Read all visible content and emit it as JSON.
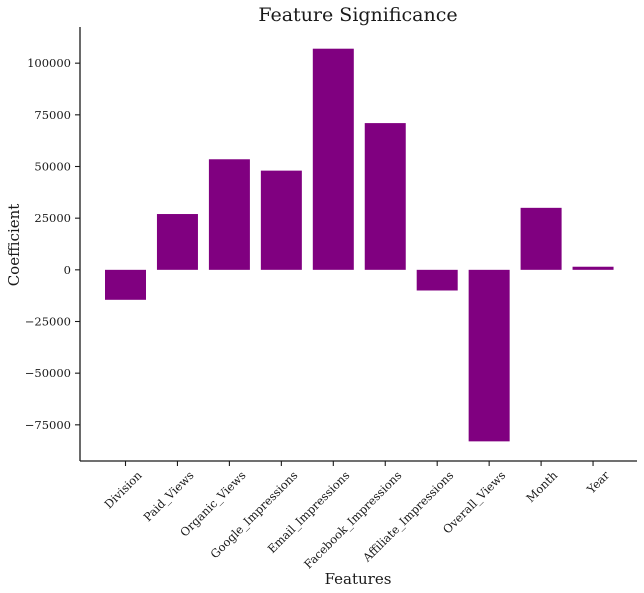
{
  "chart_data": {
    "type": "bar",
    "title": "Feature Significance",
    "xlabel": "Features",
    "ylabel": "Coefficient",
    "categories": [
      "Division",
      "Paid_Views",
      "Organic_Views",
      "Google_Impressions",
      "Email_Impressions",
      "Facebook_Impressions",
      "Affiliate_Impressions",
      "Overall_Views",
      "Month",
      "Year"
    ],
    "values": [
      -14500,
      27000,
      53500,
      48000,
      107000,
      71000,
      -10000,
      -83000,
      30000,
      1500
    ],
    "ylim": [
      -92500,
      117500
    ],
    "yticks": [
      -75000,
      -50000,
      -25000,
      0,
      25000,
      50000,
      75000,
      100000
    ],
    "ytick_labels": [
      "−75000",
      "−50000",
      "−25000",
      "0",
      "25000",
      "50000",
      "75000",
      "100000"
    ],
    "bar_color": "#800080",
    "grid": false,
    "legend": "none"
  }
}
